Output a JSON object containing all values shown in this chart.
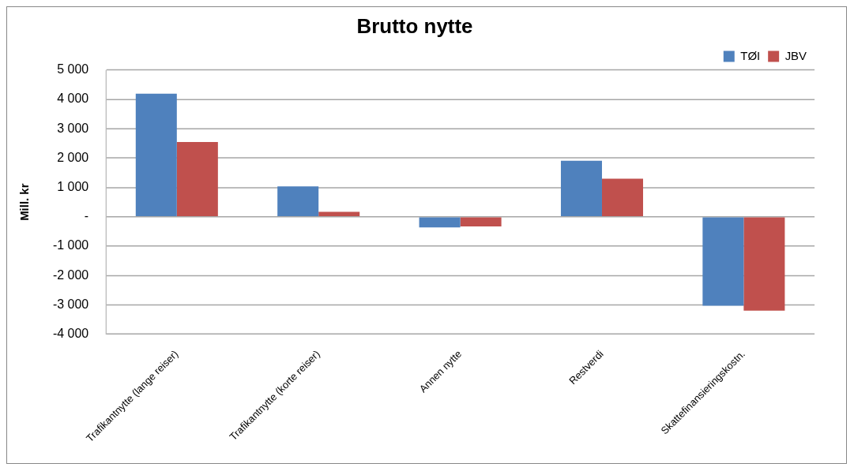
{
  "chart_data": {
    "type": "bar",
    "title": "Brutto nytte",
    "ylabel": "Mill. kr",
    "categories": [
      "Trafikantnytte (lange reiser)",
      "Trafikantnytte (korte reiser)",
      "Annen nytte",
      "Restverdi",
      "Skattefinansieringskostn."
    ],
    "series": [
      {
        "name": "TØI",
        "color": "#4f81bd",
        "values": [
          4200,
          1040,
          -360,
          1910,
          -3030
        ]
      },
      {
        "name": "JBV",
        "color": "#c0504d",
        "values": [
          2550,
          170,
          -330,
          1300,
          -3200
        ]
      }
    ],
    "ylim": [
      -4000,
      5000
    ],
    "yticks": [
      {
        "value": -4000,
        "label": "-4 000"
      },
      {
        "value": -3000,
        "label": "-3 000"
      },
      {
        "value": -2000,
        "label": "-2 000"
      },
      {
        "value": -1000,
        "label": "-1 000"
      },
      {
        "value": 0,
        "label": "-"
      },
      {
        "value": 1000,
        "label": "1 000"
      },
      {
        "value": 2000,
        "label": "2 000"
      },
      {
        "value": 3000,
        "label": "3 000"
      },
      {
        "value": 4000,
        "label": "4 000"
      },
      {
        "value": 5000,
        "label": "5 000"
      }
    ],
    "grid": "y",
    "legend": "top right"
  }
}
